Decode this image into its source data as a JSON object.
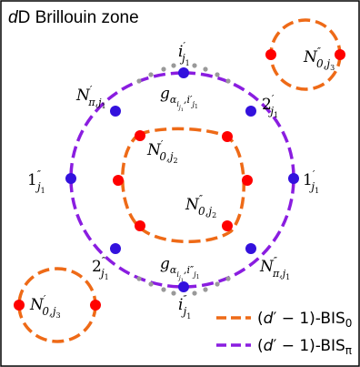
{
  "title": {
    "prefix": "d",
    "rest": "D Brillouin zone"
  },
  "colors": {
    "orange": "#ee6a17",
    "purple": "#8a1de0",
    "red": "#ff0000",
    "blue": "#3311dd",
    "gray": "#999999",
    "frame": "#000000"
  },
  "labels": {
    "i_top": {
      "main": "i",
      "sup": "′",
      "sub": "j",
      "subsub": "1"
    },
    "i_bottom": {
      "main": "i",
      "sup": "″",
      "sub": "j",
      "subsub": "1"
    },
    "one_left": {
      "main": "1",
      "sup": "″",
      "sub": "j",
      "subsub": "1"
    },
    "one_right": {
      "main": "1",
      "sup": "′",
      "sub": "j",
      "subsub": "1"
    },
    "two_top_right": {
      "main": "2",
      "sup": "′",
      "sub": "j",
      "subsub": "1"
    },
    "two_bottom_left": {
      "main": "2",
      "sup": "″",
      "sub": "j",
      "subsub": "1"
    },
    "n_pi_left": {
      "main": "N",
      "sup": "′",
      "sub": "π,j",
      "subsub": "1"
    },
    "n_pi_right": {
      "main": "N",
      "sup": "″",
      "sub": "π,j",
      "subsub": "1"
    },
    "n0_j2_left": {
      "main": "N",
      "sup": "′",
      "sub": "0,j",
      "subsub": "2"
    },
    "n0_j2_right": {
      "main": "N",
      "sup": "″",
      "sub": "0,j",
      "subsub": "2"
    },
    "n0_j3_top": {
      "main": "N",
      "sup": "″",
      "sub": "0,j",
      "subsub": "3"
    },
    "n0_j3_bottom": {
      "main": "N",
      "sup": "′",
      "sub": "0,j",
      "subsub": "3"
    },
    "g_top": {
      "main": "g",
      "sub1": "α",
      "sub2": "i",
      "sub3": "j",
      "sub4": "1",
      "sub5": ",i′",
      "sub6": "j",
      "sub7": "1"
    },
    "g_bottom": {
      "main": "g",
      "sub1": "α",
      "sub2": "i",
      "sub3": "j",
      "sub4": "1",
      "sub5": ",i″",
      "sub6": "j",
      "sub7": "1"
    }
  },
  "legend": [
    {
      "prefix": "(",
      "var": "d",
      "rest": "′ − 1)-BIS",
      "sub": "0",
      "color_key": "orange"
    },
    {
      "prefix": "(",
      "var": "d",
      "rest": "′ − 1)-BIS",
      "sub": "π",
      "color_key": "purple"
    }
  ]
}
